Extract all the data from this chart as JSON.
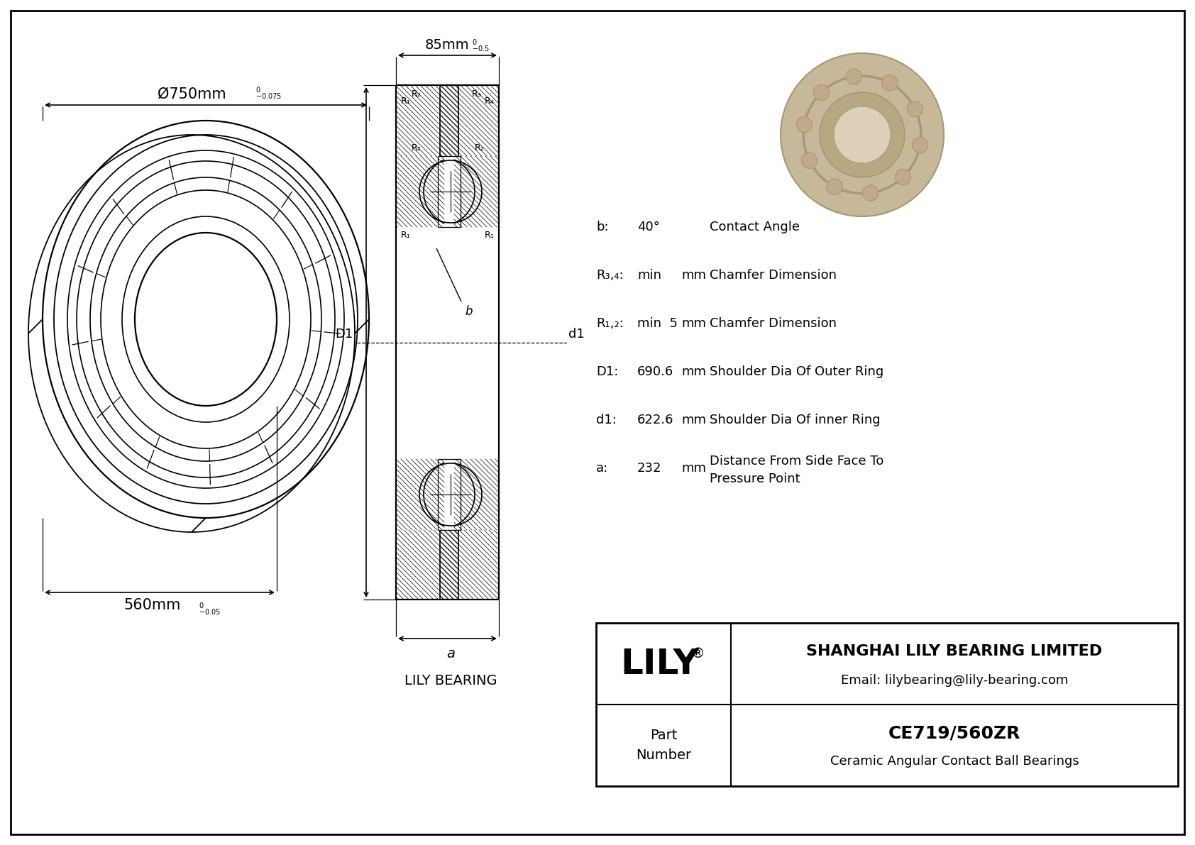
{
  "bg_color": "#ffffff",
  "line_color": "#000000",
  "outer_diameter_label": "Ø750mm",
  "outer_tol_upper": "0",
  "outer_tol_lower": "-0.075",
  "inner_diameter_label": "560mm",
  "inner_tol_upper": "0",
  "inner_tol_lower": "-0.05",
  "width_label": "85mm",
  "width_tol_upper": "0",
  "width_tol_lower": "-0.5",
  "specs": [
    {
      "symbol": "b:",
      "value": "40°",
      "unit": "",
      "desc": "Contact Angle"
    },
    {
      "symbol": "R₃,₄:",
      "value": "min",
      "unit": "mm",
      "desc": "Chamfer Dimension"
    },
    {
      "symbol": "R₁,₂:",
      "value": "min  5",
      "unit": "mm",
      "desc": "Chamfer Dimension"
    },
    {
      "symbol": "D1:",
      "value": "690.6",
      "unit": "mm",
      "desc": "Shoulder Dia Of Outer Ring"
    },
    {
      "symbol": "d1:",
      "value": "622.6",
      "unit": "mm",
      "desc": "Shoulder Dia Of inner Ring"
    },
    {
      "symbol": "a:",
      "value": "232",
      "unit": "mm",
      "desc": "Distance From Side Face To\nPressure Point"
    }
  ],
  "company_name": "SHANGHAI LILY BEARING LIMITED",
  "company_email": "Email: lilybearing@lily-bearing.com",
  "part_number": "CE719/560ZR",
  "part_type": "Ceramic Angular Contact Ball Bearings",
  "lily_label": "LILY BEARING",
  "bearing_3d_color": "#c8b89a",
  "bearing_3d_dark": "#a89878",
  "bearing_3d_light": "#ddd0b8"
}
